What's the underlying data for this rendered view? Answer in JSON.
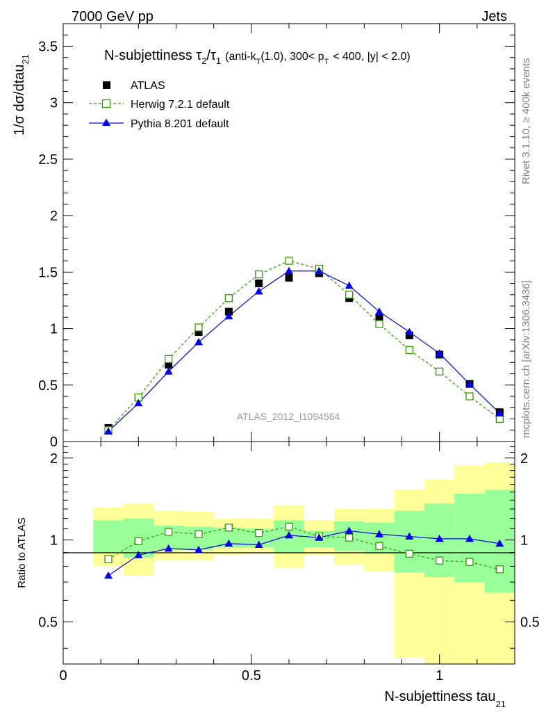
{
  "header": {
    "left": "7000 GeV pp",
    "right": "Jets"
  },
  "side_labels": {
    "rivet": "Rivet 3.1.10, ≥ 400k events",
    "mcplots": "mcplots.cern.ch [arXiv:1306.3436]"
  },
  "colors": {
    "atlas": "#000000",
    "herwig": "#339900",
    "pythia": "#0000ee",
    "band_outer": "#ffff99",
    "band_inner": "#99ff99",
    "watermark": "#999999"
  },
  "chart_data": [
    {
      "type": "scatter",
      "panel": "main",
      "title": "N-subjettiness τ₂/τ₁ (anti-k_T(1.0), 300< p_T < 400, |y| < 2.0)",
      "title_parts": {
        "main_prefix": "N-subjettiness τ",
        "sub1": "2",
        "slash": "/τ",
        "sub2": "1",
        "small_a": "(anti-k",
        "small_a_sub": "T",
        "small_b": "(1.0), 300< p",
        "small_b_sub": "T",
        "small_c": "< 400, |y| < 2.0)"
      },
      "ylabel": "1/σ dσ/dtau",
      "ylabel_sub": "21",
      "watermark": "ATLAS_2012_I1094564",
      "xlim": [
        0,
        1.2
      ],
      "ylim": [
        0,
        3.7
      ],
      "y_ticks": [
        0,
        0.5,
        1,
        1.5,
        2,
        2.5,
        3,
        3.5
      ],
      "y_tick_labels": [
        "0",
        "0.5",
        "1",
        "1.5",
        "2",
        "2.5",
        "3",
        "3.5"
      ],
      "legend_placement": "top-left",
      "x": [
        0.12,
        0.2,
        0.28,
        0.36,
        0.44,
        0.52,
        0.6,
        0.68,
        0.76,
        0.84,
        0.92,
        1.0,
        1.08,
        1.16
      ],
      "series": [
        {
          "name": "ATLAS",
          "marker": "filled-square",
          "values": [
            0.12,
            0.39,
            0.68,
            0.97,
            1.15,
            1.4,
            1.45,
            1.49,
            1.27,
            1.1,
            0.94,
            0.77,
            0.51,
            0.26
          ]
        },
        {
          "name": "Herwig 7.2.1 default",
          "marker": "open-square-dashed",
          "values": [
            0.1,
            0.39,
            0.73,
            1.01,
            1.27,
            1.48,
            1.6,
            1.53,
            1.3,
            1.04,
            0.81,
            0.62,
            0.4,
            0.2
          ]
        },
        {
          "name": "Pythia 8.201 default",
          "marker": "filled-triangle-solid",
          "values": [
            0.09,
            0.34,
            0.62,
            0.88,
            1.11,
            1.33,
            1.51,
            1.51,
            1.38,
            1.15,
            0.97,
            0.78,
            0.51,
            0.25
          ]
        }
      ]
    },
    {
      "type": "scatter",
      "panel": "ratio",
      "ylabel": "Ratio to ATLAS",
      "xlabel": "N-subjettiness tau",
      "xlabel_sub": "21",
      "xlim": [
        0,
        1.2
      ],
      "ylim": [
        0.35,
        2.3
      ],
      "y_ticks": [
        0.5,
        1,
        2
      ],
      "y_tick_labels": [
        "0.5",
        "1",
        "2"
      ],
      "x_ticks": [
        0,
        0.5,
        1
      ],
      "x_tick_labels": [
        "0",
        "0.5",
        "1"
      ],
      "bins": [
        [
          0.08,
          0.16
        ],
        [
          0.16,
          0.24
        ],
        [
          0.24,
          0.32
        ],
        [
          0.32,
          0.4
        ],
        [
          0.4,
          0.48
        ],
        [
          0.48,
          0.56
        ],
        [
          0.56,
          0.64
        ],
        [
          0.64,
          0.72
        ],
        [
          0.72,
          0.8
        ],
        [
          0.8,
          0.88
        ],
        [
          0.88,
          0.96
        ],
        [
          0.96,
          1.04
        ],
        [
          1.04,
          1.12
        ],
        [
          1.12,
          1.2
        ]
      ],
      "band_outer": [
        [
          0.8,
          1.32
        ],
        [
          0.74,
          1.36
        ],
        [
          0.84,
          1.28
        ],
        [
          0.84,
          1.27
        ],
        [
          0.88,
          1.2
        ],
        [
          0.89,
          1.2
        ],
        [
          0.79,
          1.34
        ],
        [
          0.88,
          1.18
        ],
        [
          0.81,
          1.3
        ],
        [
          0.77,
          1.3
        ],
        [
          0.37,
          1.53
        ],
        [
          0.33,
          1.67
        ],
        [
          0.32,
          1.88
        ],
        [
          0.32,
          1.93
        ]
      ],
      "band_inner": [
        [
          0.9,
          1.18
        ],
        [
          0.86,
          1.2
        ],
        [
          0.92,
          1.13
        ],
        [
          0.92,
          1.12
        ],
        [
          0.94,
          1.11
        ],
        [
          0.94,
          1.1
        ],
        [
          0.9,
          1.18
        ],
        [
          0.94,
          1.08
        ],
        [
          0.91,
          1.17
        ],
        [
          0.89,
          1.16
        ],
        [
          0.76,
          1.28
        ],
        [
          0.73,
          1.36
        ],
        [
          0.7,
          1.48
        ],
        [
          0.64,
          1.53
        ]
      ],
      "x": [
        0.12,
        0.2,
        0.28,
        0.36,
        0.44,
        0.52,
        0.6,
        0.68,
        0.76,
        0.84,
        0.92,
        1.0,
        1.08,
        1.16
      ],
      "series": [
        {
          "name": "Herwig 7.2.1 default",
          "values": [
            0.85,
            0.99,
            1.07,
            1.05,
            1.11,
            1.06,
            1.12,
            1.03,
            1.02,
            0.95,
            0.89,
            0.84,
            0.83,
            0.78
          ]
        },
        {
          "name": "Pythia 8.201 default",
          "values": [
            0.74,
            0.88,
            0.93,
            0.92,
            0.97,
            0.96,
            1.04,
            1.02,
            1.08,
            1.05,
            1.03,
            1.01,
            1.01,
            0.97
          ]
        }
      ]
    }
  ]
}
